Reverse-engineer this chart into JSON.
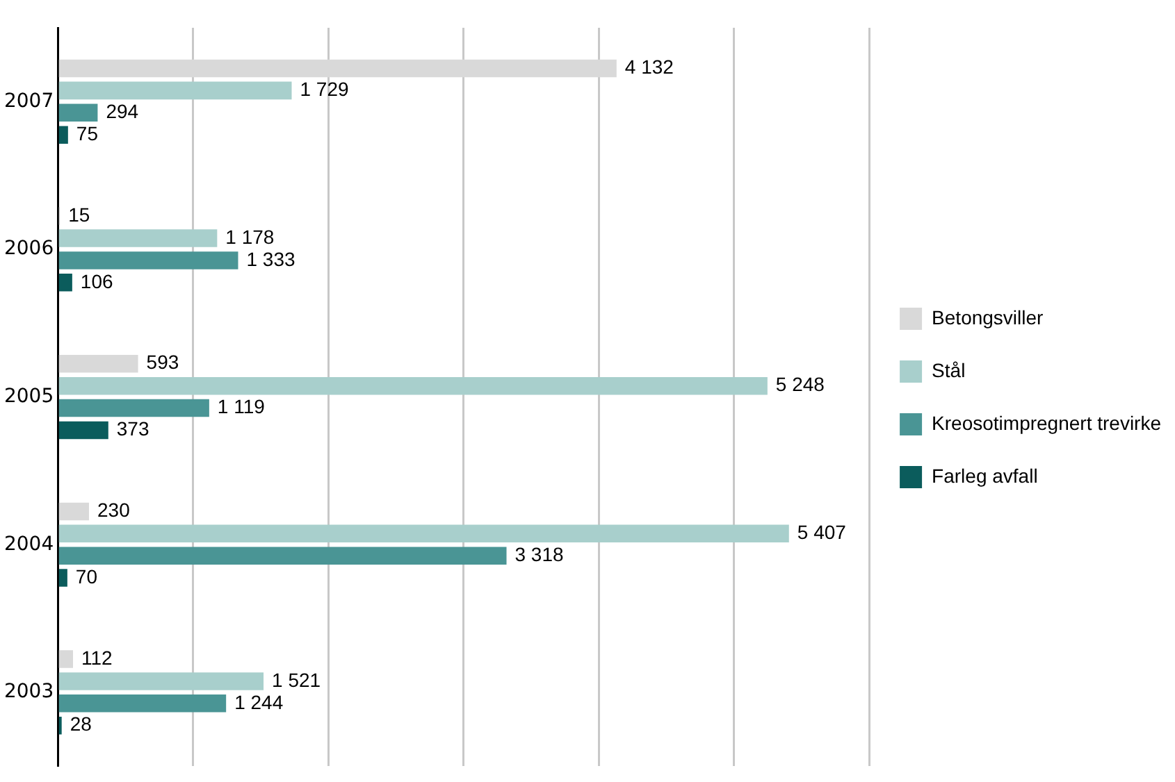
{
  "chart_data": {
    "type": "bar",
    "orientation": "horizontal",
    "categories": [
      "2007",
      "2006",
      "2005",
      "2004",
      "2003"
    ],
    "series": [
      {
        "name": "Betongsviller",
        "color": "#d9d9d9",
        "values": [
          4132,
          15,
          593,
          230,
          112
        ],
        "value_labels": [
          "4 132",
          "15",
          "593",
          "230",
          "112"
        ]
      },
      {
        "name": "Stål",
        "color": "#a8cfcc",
        "values": [
          1729,
          1178,
          5248,
          5407,
          1521
        ],
        "value_labels": [
          "1 729",
          "1 178",
          "5 248",
          "5 407",
          "1 521"
        ]
      },
      {
        "name": "Kreosotimpregnert trevirke",
        "color": "#4a9595",
        "values": [
          294,
          1333,
          1119,
          3318,
          1244
        ],
        "value_labels": [
          "294",
          "1 333",
          "1 119",
          "3 318",
          "1 244"
        ]
      },
      {
        "name": "Farleg avfall",
        "color": "#0b5c5c",
        "values": [
          75,
          106,
          373,
          70,
          28
        ],
        "value_labels": [
          "75",
          "106",
          "373",
          "70",
          "28"
        ]
      }
    ],
    "xlim": [
      0,
      6000
    ],
    "xticks": [
      {
        "value": 0,
        "label": null
      },
      {
        "value": 1000,
        "label": null
      },
      {
        "value": 2000,
        "label": null
      },
      {
        "value": 3000,
        "label": null
      },
      {
        "value": 4000,
        "label": null
      },
      {
        "value": 5000,
        "label": null
      },
      {
        "value": 6000,
        "label": null
      }
    ],
    "tick_labels": "y",
    "grid": "x",
    "legend": "right"
  }
}
